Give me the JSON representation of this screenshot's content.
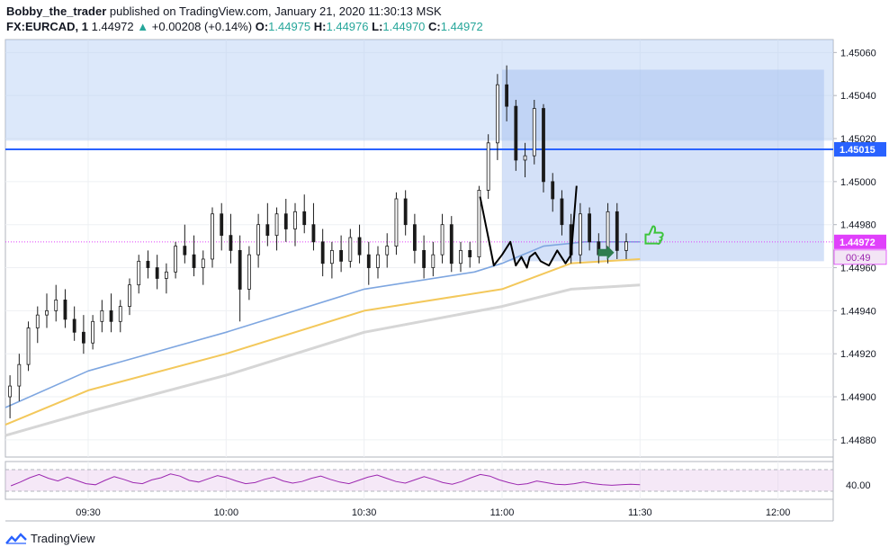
{
  "header": {
    "author": "Bobby_the_trader",
    "published_text": "published on TradingView.com, January 21, 2020 11:30:13 MSK",
    "symbol": "FX:EURCAD, 1",
    "last": "1.44972",
    "change_arrow": "▲",
    "change": "+0.00208 (+0.14%)",
    "o_label": "O:",
    "o": "1.44975",
    "h_label": "H:",
    "h": "1.44976",
    "l_label": "L:",
    "l": "1.44970",
    "c_label": "C:",
    "c": "1.44972"
  },
  "footer": {
    "brand": "TradingView",
    "logo_icon": "tradingview-logo-icon"
  },
  "chart_data": {
    "type": "candlestick",
    "symbol": "FX:EURCAD",
    "interval": "1",
    "x_ticks": [
      "09:30",
      "10:00",
      "10:30",
      "11:00",
      "11:30",
      "12:00"
    ],
    "x_range": [
      "09:12",
      "12:12"
    ],
    "y_ticks": [
      "1.45060",
      "1.45040",
      "1.45020",
      "1.45000",
      "1.44980",
      "1.44960",
      "1.44940",
      "1.44920",
      "1.44900",
      "1.44880"
    ],
    "y_range": [
      1.44872,
      1.45066
    ],
    "price_label": "1.44972",
    "countdown_label": "00:49",
    "horizontal_level": {
      "value": 1.45015,
      "label": "1.45015",
      "color": "#2962ff"
    },
    "zone_upper": {
      "from_price": 1.45019,
      "to_price": 1.45066,
      "color": "#b2cdf3"
    },
    "zone_lower": {
      "from_time": "11:00",
      "to_time": "12:10",
      "from_price": 1.44963,
      "to_price": 1.45052,
      "color": "#9fbdf0"
    },
    "colors": {
      "up": "#000000",
      "down": "#000000",
      "body_up": "#ffffff",
      "body_down": "#1a1a1a",
      "ma_blue": "#7ea6e0",
      "ma_yellow": "#f3c85b",
      "ma_gray": "#d6d6d6",
      "rsi": "#9c27b0",
      "last_price": "#e040fb"
    },
    "candles": [
      {
        "t": "09:13",
        "o": 1.449,
        "h": 1.4491,
        "l": 1.4489,
        "c": 1.44905
      },
      {
        "t": "09:15",
        "o": 1.44905,
        "h": 1.4492,
        "l": 1.44898,
        "c": 1.44915
      },
      {
        "t": "09:17",
        "o": 1.44915,
        "h": 1.44935,
        "l": 1.44912,
        "c": 1.44932
      },
      {
        "t": "09:19",
        "o": 1.44932,
        "h": 1.44942,
        "l": 1.44925,
        "c": 1.44938
      },
      {
        "t": "09:21",
        "o": 1.44938,
        "h": 1.44948,
        "l": 1.44932,
        "c": 1.4494
      },
      {
        "t": "09:23",
        "o": 1.4494,
        "h": 1.44952,
        "l": 1.44935,
        "c": 1.44945
      },
      {
        "t": "09:25",
        "o": 1.44945,
        "h": 1.4495,
        "l": 1.44932,
        "c": 1.44936
      },
      {
        "t": "09:27",
        "o": 1.44936,
        "h": 1.44942,
        "l": 1.44926,
        "c": 1.4493
      },
      {
        "t": "09:29",
        "o": 1.4493,
        "h": 1.44938,
        "l": 1.4492,
        "c": 1.44925
      },
      {
        "t": "09:31",
        "o": 1.44925,
        "h": 1.44938,
        "l": 1.44922,
        "c": 1.44935
      },
      {
        "t": "09:33",
        "o": 1.44935,
        "h": 1.44945,
        "l": 1.4493,
        "c": 1.4494
      },
      {
        "t": "09:35",
        "o": 1.4494,
        "h": 1.44948,
        "l": 1.4493,
        "c": 1.44935
      },
      {
        "t": "09:37",
        "o": 1.44935,
        "h": 1.44945,
        "l": 1.4493,
        "c": 1.44942
      },
      {
        "t": "09:39",
        "o": 1.44942,
        "h": 1.44955,
        "l": 1.44938,
        "c": 1.44952
      },
      {
        "t": "09:41",
        "o": 1.44952,
        "h": 1.44966,
        "l": 1.44948,
        "c": 1.44963
      },
      {
        "t": "09:43",
        "o": 1.44963,
        "h": 1.44968,
        "l": 1.44955,
        "c": 1.4496
      },
      {
        "t": "09:45",
        "o": 1.4496,
        "h": 1.44966,
        "l": 1.4495,
        "c": 1.44955
      },
      {
        "t": "09:47",
        "o": 1.44955,
        "h": 1.44962,
        "l": 1.44948,
        "c": 1.44958
      },
      {
        "t": "09:49",
        "o": 1.44958,
        "h": 1.44972,
        "l": 1.44955,
        "c": 1.4497
      },
      {
        "t": "09:51",
        "o": 1.4497,
        "h": 1.4498,
        "l": 1.44962,
        "c": 1.44966
      },
      {
        "t": "09:53",
        "o": 1.44966,
        "h": 1.44975,
        "l": 1.44956,
        "c": 1.4496
      },
      {
        "t": "09:55",
        "o": 1.4496,
        "h": 1.44968,
        "l": 1.44952,
        "c": 1.44964
      },
      {
        "t": "09:57",
        "o": 1.44964,
        "h": 1.44988,
        "l": 1.4496,
        "c": 1.44985
      },
      {
        "t": "09:59",
        "o": 1.44985,
        "h": 1.4499,
        "l": 1.44968,
        "c": 1.44975
      },
      {
        "t": "10:01",
        "o": 1.44975,
        "h": 1.44985,
        "l": 1.44962,
        "c": 1.44968
      },
      {
        "t": "10:03",
        "o": 1.44968,
        "h": 1.44975,
        "l": 1.44935,
        "c": 1.4495
      },
      {
        "t": "10:05",
        "o": 1.4495,
        "h": 1.4497,
        "l": 1.44945,
        "c": 1.44966
      },
      {
        "t": "10:07",
        "o": 1.44966,
        "h": 1.44985,
        "l": 1.4496,
        "c": 1.4498
      },
      {
        "t": "10:09",
        "o": 1.4498,
        "h": 1.4499,
        "l": 1.4497,
        "c": 1.44975
      },
      {
        "t": "10:11",
        "o": 1.44975,
        "h": 1.44988,
        "l": 1.44968,
        "c": 1.44985
      },
      {
        "t": "10:13",
        "o": 1.44985,
        "h": 1.44992,
        "l": 1.44972,
        "c": 1.44978
      },
      {
        "t": "10:15",
        "o": 1.44978,
        "h": 1.4499,
        "l": 1.4497,
        "c": 1.44986
      },
      {
        "t": "10:17",
        "o": 1.44986,
        "h": 1.44994,
        "l": 1.44976,
        "c": 1.4498
      },
      {
        "t": "10:19",
        "o": 1.4498,
        "h": 1.4499,
        "l": 1.44968,
        "c": 1.44972
      },
      {
        "t": "10:21",
        "o": 1.44972,
        "h": 1.44978,
        "l": 1.44956,
        "c": 1.44962
      },
      {
        "t": "10:23",
        "o": 1.44962,
        "h": 1.44972,
        "l": 1.44955,
        "c": 1.44968
      },
      {
        "t": "10:25",
        "o": 1.44968,
        "h": 1.44975,
        "l": 1.44958,
        "c": 1.44963
      },
      {
        "t": "10:27",
        "o": 1.44963,
        "h": 1.44978,
        "l": 1.4496,
        "c": 1.44974
      },
      {
        "t": "10:29",
        "o": 1.44974,
        "h": 1.4498,
        "l": 1.44962,
        "c": 1.44966
      },
      {
        "t": "10:31",
        "o": 1.44966,
        "h": 1.44972,
        "l": 1.44952,
        "c": 1.4496
      },
      {
        "t": "10:33",
        "o": 1.4496,
        "h": 1.4497,
        "l": 1.44955,
        "c": 1.44966
      },
      {
        "t": "10:35",
        "o": 1.44966,
        "h": 1.44976,
        "l": 1.4496,
        "c": 1.4497
      },
      {
        "t": "10:37",
        "o": 1.4497,
        "h": 1.44995,
        "l": 1.44966,
        "c": 1.44992
      },
      {
        "t": "10:39",
        "o": 1.44992,
        "h": 1.44996,
        "l": 1.44975,
        "c": 1.4498
      },
      {
        "t": "10:41",
        "o": 1.4498,
        "h": 1.44985,
        "l": 1.44962,
        "c": 1.44968
      },
      {
        "t": "10:43",
        "o": 1.44968,
        "h": 1.44975,
        "l": 1.44955,
        "c": 1.4496
      },
      {
        "t": "10:45",
        "o": 1.4496,
        "h": 1.44972,
        "l": 1.44956,
        "c": 1.44966
      },
      {
        "t": "10:47",
        "o": 1.44966,
        "h": 1.44985,
        "l": 1.44962,
        "c": 1.4498
      },
      {
        "t": "10:49",
        "o": 1.4498,
        "h": 1.44984,
        "l": 1.44958,
        "c": 1.44962
      },
      {
        "t": "10:51",
        "o": 1.44962,
        "h": 1.44972,
        "l": 1.44958,
        "c": 1.44968
      },
      {
        "t": "10:53",
        "o": 1.44968,
        "h": 1.44972,
        "l": 1.4496,
        "c": 1.44965
      },
      {
        "t": "10:55",
        "o": 1.44965,
        "h": 1.44998,
        "l": 1.44962,
        "c": 1.44996
      },
      {
        "t": "10:57",
        "o": 1.44996,
        "h": 1.45022,
        "l": 1.44992,
        "c": 1.45018
      },
      {
        "t": "10:59",
        "o": 1.45018,
        "h": 1.4505,
        "l": 1.4501,
        "c": 1.45045
      },
      {
        "t": "11:01",
        "o": 1.45045,
        "h": 1.45054,
        "l": 1.45028,
        "c": 1.45035
      },
      {
        "t": "11:03",
        "o": 1.45035,
        "h": 1.45038,
        "l": 1.45005,
        "c": 1.4501
      },
      {
        "t": "11:05",
        "o": 1.4501,
        "h": 1.45018,
        "l": 1.45002,
        "c": 1.45012
      },
      {
        "t": "11:07",
        "o": 1.45012,
        "h": 1.45038,
        "l": 1.45008,
        "c": 1.45034
      },
      {
        "t": "11:09",
        "o": 1.45034,
        "h": 1.45036,
        "l": 1.44995,
        "c": 1.45
      },
      {
        "t": "11:11",
        "o": 1.45,
        "h": 1.45004,
        "l": 1.44986,
        "c": 1.44992
      },
      {
        "t": "11:13",
        "o": 1.44992,
        "h": 1.44996,
        "l": 1.44975,
        "c": 1.4498
      },
      {
        "t": "11:15",
        "o": 1.4498,
        "h": 1.44985,
        "l": 1.44962,
        "c": 1.44966
      },
      {
        "t": "11:17",
        "o": 1.44966,
        "h": 1.4499,
        "l": 1.44962,
        "c": 1.44985
      },
      {
        "t": "11:19",
        "o": 1.44985,
        "h": 1.44988,
        "l": 1.44968,
        "c": 1.44972
      },
      {
        "t": "11:21",
        "o": 1.44972,
        "h": 1.44976,
        "l": 1.44962,
        "c": 1.44966
      },
      {
        "t": "11:23",
        "o": 1.44966,
        "h": 1.4499,
        "l": 1.44962,
        "c": 1.44986
      },
      {
        "t": "11:25",
        "o": 1.44986,
        "h": 1.4499,
        "l": 1.44964,
        "c": 1.44968
      },
      {
        "t": "11:27",
        "o": 1.44968,
        "h": 1.44976,
        "l": 1.44964,
        "c": 1.44972
      }
    ],
    "ma_blue": [
      [
        9.2,
        1.44895
      ],
      [
        9.5,
        1.44912
      ],
      [
        10.0,
        1.4493
      ],
      [
        10.5,
        1.4495
      ],
      [
        10.9,
        1.44958
      ],
      [
        11.0,
        1.44962
      ],
      [
        11.15,
        1.4497
      ],
      [
        11.3,
        1.44972
      ],
      [
        11.5,
        1.44972
      ]
    ],
    "ma_yellow": [
      [
        9.2,
        1.44887
      ],
      [
        9.5,
        1.44903
      ],
      [
        10.0,
        1.4492
      ],
      [
        10.5,
        1.4494
      ],
      [
        11.0,
        1.4495
      ],
      [
        11.25,
        1.44962
      ],
      [
        11.5,
        1.44964
      ]
    ],
    "ma_gray": [
      [
        9.2,
        1.44882
      ],
      [
        9.5,
        1.44893
      ],
      [
        10.0,
        1.4491
      ],
      [
        10.5,
        1.4493
      ],
      [
        11.0,
        1.44942
      ],
      [
        11.25,
        1.4495
      ],
      [
        11.5,
        1.44952
      ]
    ],
    "rsi": {
      "label": "40.00",
      "values": [
        40,
        47,
        55,
        61,
        54,
        49,
        56,
        50,
        44,
        42,
        50,
        57,
        52,
        46,
        44,
        51,
        55,
        62,
        58,
        50,
        47,
        53,
        59,
        55,
        49,
        44,
        46,
        52,
        56,
        49,
        45,
        48,
        54,
        58,
        52,
        47,
        44,
        50,
        56,
        60,
        54,
        48,
        45,
        51,
        57,
        52,
        46,
        43,
        48,
        55,
        61,
        58,
        51,
        46,
        42,
        44,
        49,
        46,
        43,
        42,
        44,
        47,
        44,
        42,
        41,
        42,
        43,
        42
      ],
      "upper": 70,
      "lower": 30
    },
    "drawing": {
      "freehand_path": [
        [
          10.92,
          1.44993
        ],
        [
          10.95,
          1.44974
        ],
        [
          10.97,
          1.44961
        ],
        [
          11.0,
          1.44966
        ],
        [
          11.03,
          1.44972
        ],
        [
          11.05,
          1.44961
        ],
        [
          11.07,
          1.44965
        ],
        [
          11.09,
          1.4496
        ],
        [
          11.1,
          1.44965
        ],
        [
          11.12,
          1.44967
        ],
        [
          11.14,
          1.44963
        ],
        [
          11.17,
          1.44961
        ],
        [
          11.2,
          1.44968
        ],
        [
          11.23,
          1.44962
        ],
        [
          11.25,
          1.44966
        ],
        [
          11.27,
          1.44998
        ]
      ],
      "arrow_icon": "arrow-right-icon",
      "thumb_icon": "thumbs-up-icon"
    }
  }
}
